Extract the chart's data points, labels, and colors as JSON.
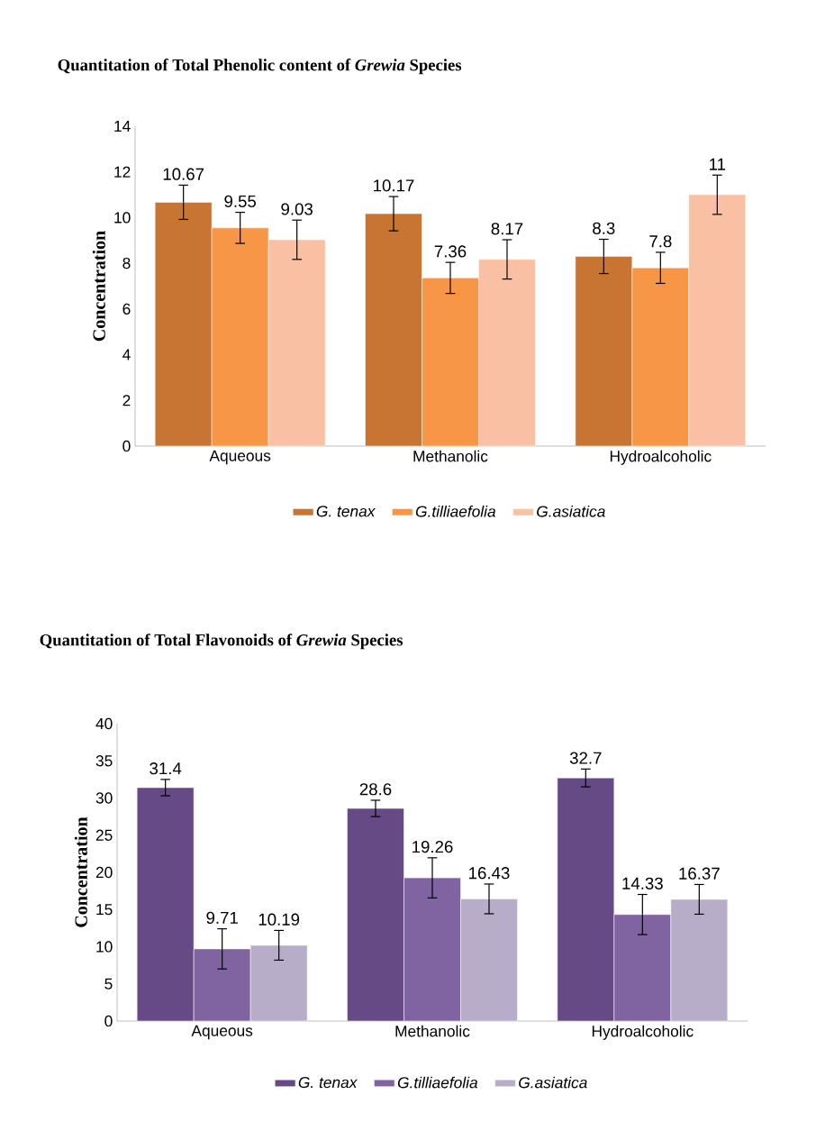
{
  "chart_data": [
    {
      "type": "bar",
      "title": "Quantitation of Total Phenolic content of *Grewia* Species",
      "ylabel": "Concentration",
      "categories": [
        "Aqueous",
        "Methanolic",
        "Hydroalcoholic"
      ],
      "series": [
        {
          "name": "G. tenax",
          "color": "#c87533",
          "values": [
            10.67,
            10.17,
            8.3
          ],
          "errors": [
            0.75,
            0.75,
            0.75
          ],
          "value_labels": [
            "10.67",
            "10.17",
            "8.3"
          ]
        },
        {
          "name": "G.tilliaefolia",
          "color": "#f79646",
          "values": [
            9.55,
            7.36,
            7.8
          ],
          "errors": [
            0.68,
            0.68,
            0.68
          ],
          "value_labels": [
            "9.55",
            "7.36",
            "7.8"
          ]
        },
        {
          "name": "G.asiatica",
          "color": "#f9c0a3",
          "values": [
            9.03,
            8.17,
            11
          ],
          "errors": [
            0.86,
            0.86,
            0.86
          ],
          "value_labels": [
            "9.03",
            "8.17",
            "11"
          ]
        }
      ],
      "ylim": [
        0,
        14
      ],
      "yticks": [
        0,
        2,
        4,
        6,
        8,
        10,
        12,
        14
      ],
      "legend": "bottom"
    },
    {
      "type": "bar",
      "title": "Quantitation of Total Flavonoids of *Grewia* Species",
      "ylabel": "Concentration",
      "categories": [
        "Aqueous",
        "Methanolic",
        "Hydroalcoholic"
      ],
      "series": [
        {
          "name": "G. tenax",
          "color": "#664a86",
          "values": [
            31.4,
            28.6,
            32.7
          ],
          "errors": [
            1.1,
            1.1,
            1.2
          ],
          "value_labels": [
            "31.4",
            "28.6",
            "32.7"
          ]
        },
        {
          "name": "G.tilliaefolia",
          "color": "#8064a2",
          "values": [
            9.71,
            19.26,
            14.33
          ],
          "errors": [
            2.7,
            2.7,
            2.7
          ],
          "value_labels": [
            "9.71",
            "19.26",
            "14.33"
          ]
        },
        {
          "name": "G.asiatica",
          "color": "#b8adc9",
          "values": [
            10.19,
            16.43,
            16.37
          ],
          "errors": [
            2.0,
            2.0,
            2.0
          ],
          "value_labels": [
            "10.19",
            "16.43",
            "16.37"
          ]
        }
      ],
      "ylim": [
        0,
        40
      ],
      "yticks": [
        0,
        5,
        10,
        15,
        20,
        25,
        30,
        35,
        40
      ],
      "legend": "bottom"
    }
  ]
}
